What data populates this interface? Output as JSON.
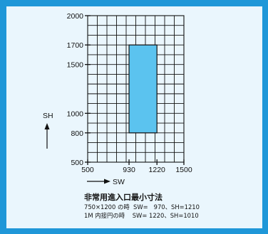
{
  "chart_data": {
    "type": "bar",
    "xlabel": "SW",
    "ylabel": "SH",
    "xlim": [
      500,
      1500
    ],
    "ylim": [
      500,
      2000
    ],
    "x_ticks": [
      "500",
      "930",
      "1220",
      "1500"
    ],
    "y_ticks": [
      "500",
      "800",
      "1000",
      "1500",
      "1700",
      "2000"
    ],
    "grid": true,
    "bar": {
      "x_range": [
        930,
        1220
      ],
      "y_range": [
        800,
        1700
      ],
      "color": "#5bc3ef"
    }
  },
  "caption": {
    "title": "非常用進入口最小寸法",
    "line1": "750×1200 の時  SW=   970、SH=1210",
    "line2": "1M 内接円の時    SW= 1220、SH=1010"
  },
  "colors": {
    "frame": "#1f97d8",
    "panel": "#eaf6fd",
    "bar": "#5bc3ef",
    "ink": "#111111"
  }
}
